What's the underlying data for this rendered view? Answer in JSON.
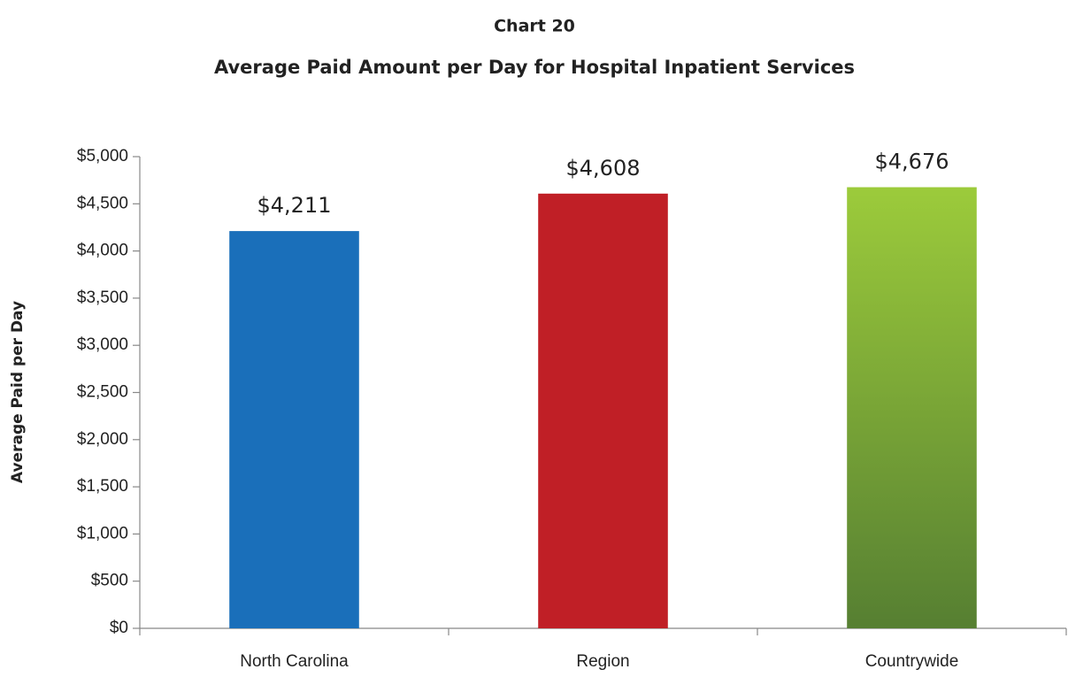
{
  "chart_data": {
    "type": "bar",
    "title": "Chart 20",
    "subtitle": "Average Paid Amount per Day for Hospital Inpatient Services",
    "y_label": "Average Paid per Day",
    "categories": [
      "North Carolina",
      "Region",
      "Countrywide"
    ],
    "values": [
      4211,
      4608,
      4676
    ],
    "value_labels": [
      "$4,211",
      "$4,608",
      "$4,676"
    ],
    "colors": [
      "#1a6fba",
      "#c01f26",
      {
        "top": "#9ccb3b",
        "bottom": "#567f32"
      }
    ],
    "ylim": [
      0,
      5000
    ],
    "yticks": [
      {
        "value": 0,
        "label": "$0"
      },
      {
        "value": 500,
        "label": "$500"
      },
      {
        "value": 1000,
        "label": "$1,000"
      },
      {
        "value": 1500,
        "label": "$1,500"
      },
      {
        "value": 2000,
        "label": "$2,000"
      },
      {
        "value": 2500,
        "label": "$2,500"
      },
      {
        "value": 3000,
        "label": "$3,000"
      },
      {
        "value": 3500,
        "label": "$3,500"
      },
      {
        "value": 4000,
        "label": "$4,000"
      },
      {
        "value": 4500,
        "label": "$4,500"
      },
      {
        "value": 5000,
        "label": "$5,000"
      }
    ],
    "grid": false
  }
}
